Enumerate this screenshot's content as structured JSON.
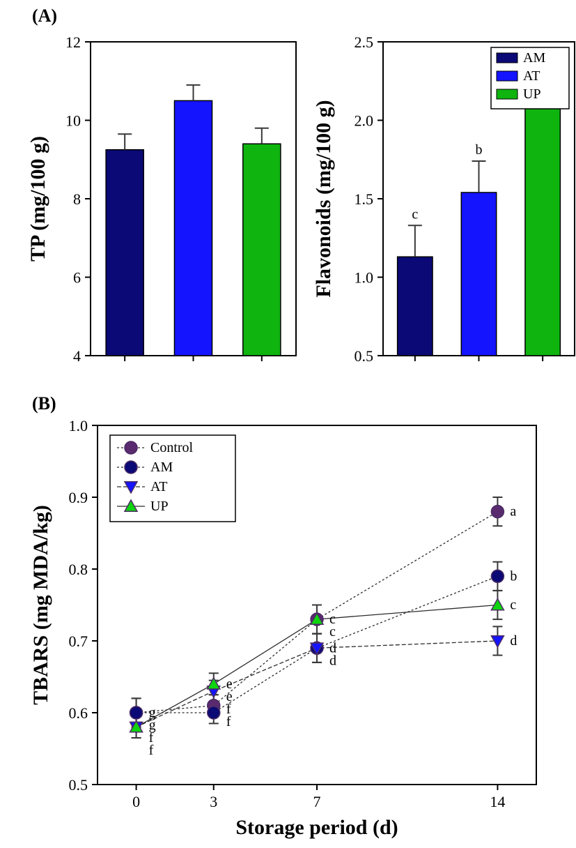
{
  "panelA": {
    "label": "(A)",
    "tp_chart": {
      "type": "bar",
      "ylabel": "TP (mg/100 g)",
      "ylim": [
        4,
        12
      ],
      "yticks": [
        4,
        6,
        8,
        10,
        12
      ],
      "categories": [
        "AM",
        "AT",
        "UP"
      ],
      "values": [
        9.25,
        10.5,
        9.4
      ],
      "errors": [
        0.4,
        0.4,
        0.4
      ],
      "bar_colors": [
        "#0b0975",
        "#1414ff",
        "#0fb40f"
      ],
      "bar_width": 0.55,
      "background_color": "#ffffff"
    },
    "flav_chart": {
      "type": "bar",
      "ylabel": "Flavonoids (mg/100 g)",
      "ylim": [
        0.5,
        2.5
      ],
      "yticks": [
        0.5,
        1.0,
        1.5,
        2.0,
        2.5
      ],
      "categories": [
        "AM",
        "AT",
        "UP"
      ],
      "values": [
        1.13,
        1.54,
        2.17
      ],
      "errors": [
        0.2,
        0.2,
        0.2
      ],
      "sig_labels": [
        "c",
        "b",
        "a"
      ],
      "bar_colors": [
        "#0b0975",
        "#1414ff",
        "#0fb40f"
      ],
      "bar_width": 0.55,
      "legend": {
        "items": [
          "AM",
          "AT",
          "UP"
        ],
        "swatch_colors": [
          "#0b0975",
          "#1414ff",
          "#0fb40f"
        ]
      },
      "background_color": "#ffffff"
    }
  },
  "panelB": {
    "label": "(B)",
    "chart": {
      "type": "line-scatter",
      "xlabel": "Storage period (d)",
      "ylabel": "TBARS (mg MDA/kg)",
      "xlim": [
        -1.5,
        15.5
      ],
      "xticks": [
        0,
        3,
        7,
        14
      ],
      "ylim": [
        0.5,
        1.0
      ],
      "yticks": [
        0.5,
        0.6,
        0.7,
        0.8,
        0.9,
        1.0
      ],
      "series": [
        {
          "name": "Control",
          "marker": "circle",
          "color": "#5a2a6f",
          "values": [
            0.6,
            0.61,
            0.73,
            0.88
          ],
          "err": [
            0.02,
            0.015,
            0.02,
            0.02
          ],
          "dash": "3,3",
          "labels": [
            "g",
            "f",
            "c",
            "a"
          ]
        },
        {
          "name": "AM",
          "marker": "circle",
          "color": "#0b0975",
          "values": [
            0.6,
            0.6,
            0.69,
            0.79
          ],
          "err": [
            0.02,
            0.015,
            0.02,
            0.02
          ],
          "dash": "3,3",
          "labels": [
            "g",
            "f",
            "d",
            "b"
          ]
        },
        {
          "name": "AT",
          "marker": "tri-down",
          "color": "#1414ff",
          "values": [
            0.58,
            0.63,
            0.69,
            0.7
          ],
          "err": [
            0.015,
            0.015,
            0.02,
            0.02
          ],
          "dash": "6,3",
          "labels": [
            "f",
            "e",
            "d",
            "d"
          ]
        },
        {
          "name": "UP",
          "marker": "tri-up",
          "color": "#0fd40f",
          "values": [
            0.58,
            0.64,
            0.73,
            0.75
          ],
          "err": [
            0.015,
            0.015,
            0.02,
            0.02
          ],
          "dash": "",
          "labels": [
            "f",
            "e",
            "c",
            "c"
          ]
        }
      ],
      "x": [
        0,
        3,
        7,
        14
      ],
      "marker_size": 9,
      "marker_stroke": "#4b2c63",
      "line_color": "#2b2b2b",
      "background_color": "#ffffff"
    }
  }
}
